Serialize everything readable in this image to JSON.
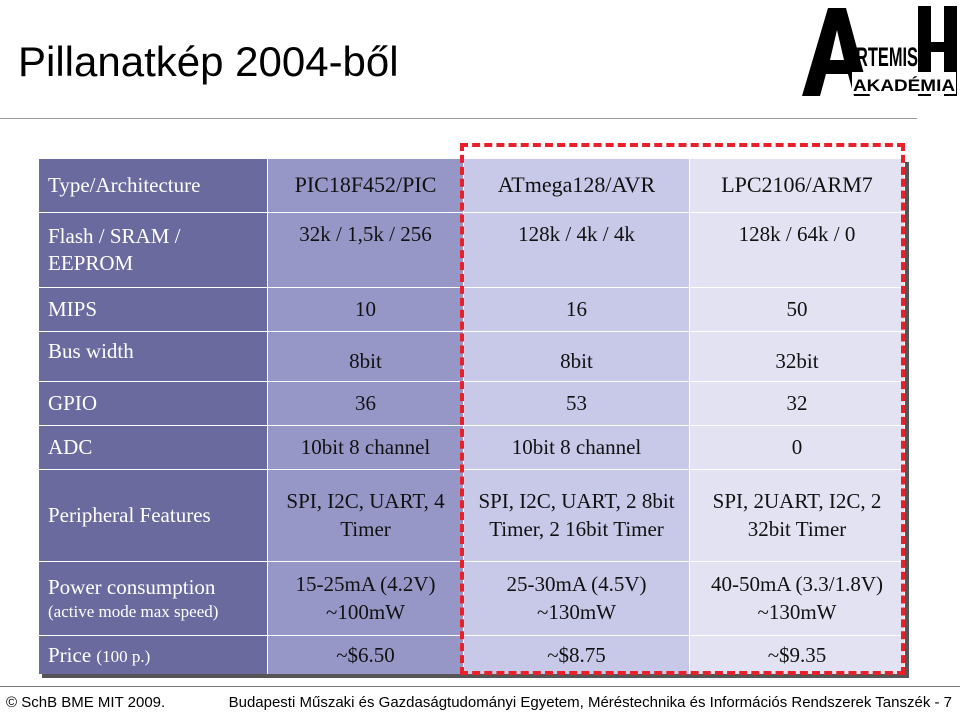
{
  "slide": {
    "title": "Pillanatkép 2004-ből",
    "logo": {
      "text_main": "RTEMIS",
      "text_sub": "AKADÉMIA",
      "icon": "artemis-akademia-logo"
    },
    "footer": {
      "left": "© SchB BME MIT  2009.",
      "right": "Budapesti Műszaki és Gazdaságtudományi Egyetem, Méréstechnika és Információs Rendszerek Tanszék - 7"
    }
  },
  "table": {
    "header": {
      "label": "Type/Architecture",
      "c1": "PIC18F452/PIC",
      "c2": "ATmega128/AVR",
      "c3": "LPC2106/ARM7"
    },
    "flash": {
      "label": "Flash / SRAM / EEPROM",
      "c1": "32k / 1,5k / 256",
      "c2": "128k / 4k / 4k",
      "c3": "128k / 64k / 0"
    },
    "mips": {
      "label": "MIPS",
      "c1": "10",
      "c2": "16",
      "c3": "50"
    },
    "bus": {
      "label": "Bus width",
      "c1": "8bit",
      "c2": "8bit",
      "c3": "32bit"
    },
    "gpio": {
      "label": "GPIO",
      "c1": "36",
      "c2": "53",
      "c3": "32"
    },
    "adc": {
      "label": "ADC",
      "c1": "10bit 8 channel",
      "c2": "10bit 8 channel",
      "c3": "0"
    },
    "peripheral": {
      "label": "Peripheral Features",
      "c1": "SPI, I2C, UART, 4 Timer",
      "c2": "SPI, I2C, UART, 2 8bit Timer, 2 16bit Timer",
      "c3": "SPI, 2UART, I2C, 2 32bit Timer"
    },
    "power": {
      "label": "Power consumption",
      "label_sub": "(active mode max speed)",
      "c1_a": "15-25mA (4.2V)",
      "c1_b": "~100mW",
      "c2_a": "25-30mA (4.5V)",
      "c2_b": "~130mW",
      "c3_a": "40-50mA (3.3/1.8V)",
      "c3_b": "~130mW"
    },
    "price": {
      "label": "Price",
      "label_sub": "(100 p.)",
      "c1": "~$6.50",
      "c2": "~$8.75",
      "c3": "~$9.35"
    }
  }
}
